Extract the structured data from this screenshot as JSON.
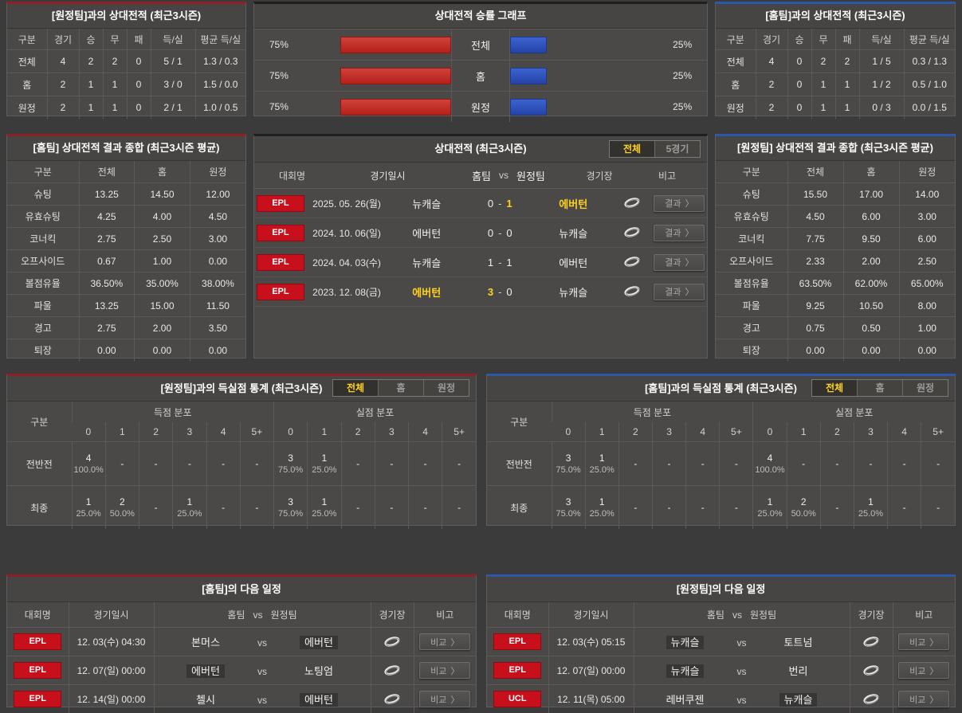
{
  "colors": {
    "accent_red": "#8e2025",
    "accent_blue": "#2d57aa",
    "bar_red": "#c22a24",
    "bar_blue": "#2f52c2",
    "highlight_yellow": "#ffd21e",
    "badge_red": "#c8101c"
  },
  "top_away_h2h": {
    "title": "[원정팀]과의 상대전적 (최근3시즌)",
    "columns": [
      "구분",
      "경기",
      "승",
      "무",
      "패",
      "득/실",
      "평균 득/실"
    ],
    "rows": [
      {
        "label": "전체",
        "values": [
          "4",
          "2",
          "2",
          "0",
          "5 / 1",
          "1.3 / 0.3"
        ]
      },
      {
        "label": "홈",
        "values": [
          "2",
          "1",
          "1",
          "0",
          "3 / 0",
          "1.5 / 0.0"
        ]
      },
      {
        "label": "원정",
        "values": [
          "2",
          "1",
          "1",
          "0",
          "2 / 1",
          "1.0 / 0.5"
        ]
      }
    ]
  },
  "winrate_graph": {
    "title": "상대전적 승률 그래프",
    "rows": [
      {
        "label": "전체",
        "left_pct": "75%",
        "left_value": 75,
        "right_pct": "25%",
        "right_value": 25
      },
      {
        "label": "홈",
        "left_pct": "75%",
        "left_value": 75,
        "right_pct": "25%",
        "right_value": 25
      },
      {
        "label": "원정",
        "left_pct": "75%",
        "left_value": 75,
        "right_pct": "25%",
        "right_value": 25
      }
    ]
  },
  "top_home_h2h": {
    "title": "[홈팀]과의 상대전적 (최근3시즌)",
    "columns": [
      "구분",
      "경기",
      "승",
      "무",
      "패",
      "득/실",
      "평균 득/실"
    ],
    "rows": [
      {
        "label": "전체",
        "values": [
          "4",
          "0",
          "2",
          "2",
          "1 / 5",
          "0.3 / 1.3"
        ]
      },
      {
        "label": "홈",
        "values": [
          "2",
          "0",
          "1",
          "1",
          "1 / 2",
          "0.5 / 1.0"
        ]
      },
      {
        "label": "원정",
        "values": [
          "2",
          "0",
          "1",
          "1",
          "0 / 3",
          "0.0 / 1.5"
        ]
      }
    ]
  },
  "summary_home": {
    "title": "[홈팀] 상대전적 결과 종합 (최근3시즌 평균)",
    "columns": [
      "구분",
      "전체",
      "홈",
      "원정"
    ],
    "rows": [
      {
        "label": "슈팅",
        "values": [
          "13.25",
          "14.50",
          "12.00"
        ]
      },
      {
        "label": "유효슈팅",
        "values": [
          "4.25",
          "4.00",
          "4.50"
        ]
      },
      {
        "label": "코너킥",
        "values": [
          "2.75",
          "2.50",
          "3.00"
        ]
      },
      {
        "label": "오프사이드",
        "values": [
          "0.67",
          "1.00",
          "0.00"
        ]
      },
      {
        "label": "볼점유율",
        "values": [
          "36.50%",
          "35.00%",
          "38.00%"
        ]
      },
      {
        "label": "파울",
        "values": [
          "13.25",
          "15.00",
          "11.50"
        ]
      },
      {
        "label": "경고",
        "values": [
          "2.75",
          "2.00",
          "3.50"
        ]
      },
      {
        "label": "퇴장",
        "values": [
          "0.00",
          "0.00",
          "0.00"
        ]
      }
    ]
  },
  "h2h_matches": {
    "title": "상대전적 (최근3시즌)",
    "tabs": [
      "전체",
      "5경기"
    ],
    "columns": {
      "league": "대회명",
      "date": "경기일시",
      "home": "홈팀",
      "vs": "vs",
      "away": "원정팀",
      "stadium": "경기장",
      "note": "비고"
    },
    "result_label": "결과",
    "chevron": "〉",
    "score_sep": "-",
    "rows": [
      {
        "league": "EPL",
        "date": "2025. 05. 26(월)",
        "home": "뉴캐슬",
        "home_score": "0",
        "away_score": "1",
        "away": "에버턴"
      },
      {
        "league": "EPL",
        "date": "2024. 10. 06(일)",
        "home": "에버턴",
        "home_score": "0",
        "away_score": "0",
        "away": "뉴캐슬"
      },
      {
        "league": "EPL",
        "date": "2024. 04. 03(수)",
        "home": "뉴캐슬",
        "home_score": "1",
        "away_score": "1",
        "away": "에버턴"
      },
      {
        "league": "EPL",
        "date": "2023. 12. 08(금)",
        "home": "에버턴",
        "home_score": "3",
        "away_score": "0",
        "away": "뉴캐슬"
      }
    ]
  },
  "summary_away": {
    "title": "[원정팀] 상대전적 결과 종합 (최근3시즌 평균)",
    "columns": [
      "구분",
      "전체",
      "홈",
      "원정"
    ],
    "rows": [
      {
        "label": "슈팅",
        "values": [
          "15.50",
          "17.00",
          "14.00"
        ]
      },
      {
        "label": "유효슈팅",
        "values": [
          "4.50",
          "6.00",
          "3.00"
        ]
      },
      {
        "label": "코너킥",
        "values": [
          "7.75",
          "9.50",
          "6.00"
        ]
      },
      {
        "label": "오프사이드",
        "values": [
          "2.33",
          "2.00",
          "2.50"
        ]
      },
      {
        "label": "볼점유율",
        "values": [
          "63.50%",
          "62.00%",
          "65.00%"
        ]
      },
      {
        "label": "파울",
        "values": [
          "9.25",
          "10.50",
          "8.00"
        ]
      },
      {
        "label": "경고",
        "values": [
          "0.75",
          "0.50",
          "1.00"
        ]
      },
      {
        "label": "퇴장",
        "values": [
          "0.00",
          "0.00",
          "0.00"
        ]
      }
    ]
  },
  "goals_away": {
    "title": "[원정팀]과의 득실점 통계 (최근3시즌)",
    "tabs": [
      "전체",
      "홈",
      "원정"
    ],
    "col_label": "구분",
    "group_scored": "득점 분포",
    "group_conceded": "실점 분포",
    "score_cols": [
      "0",
      "1",
      "2",
      "3",
      "4",
      "5+"
    ],
    "rows": [
      {
        "label": "전반전",
        "scored": [
          {
            "count": "4",
            "pct": "100.0%"
          },
          {
            "count": "-",
            "pct": ""
          },
          {
            "count": "-",
            "pct": ""
          },
          {
            "count": "-",
            "pct": ""
          },
          {
            "count": "-",
            "pct": ""
          },
          {
            "count": "-",
            "pct": ""
          }
        ],
        "conceded": [
          {
            "count": "3",
            "pct": "75.0%"
          },
          {
            "count": "1",
            "pct": "25.0%"
          },
          {
            "count": "-",
            "pct": ""
          },
          {
            "count": "-",
            "pct": ""
          },
          {
            "count": "-",
            "pct": ""
          },
          {
            "count": "-",
            "pct": ""
          }
        ]
      },
      {
        "label": "최종",
        "scored": [
          {
            "count": "1",
            "pct": "25.0%"
          },
          {
            "count": "2",
            "pct": "50.0%"
          },
          {
            "count": "-",
            "pct": ""
          },
          {
            "count": "1",
            "pct": "25.0%"
          },
          {
            "count": "-",
            "pct": ""
          },
          {
            "count": "-",
            "pct": ""
          }
        ],
        "conceded": [
          {
            "count": "3",
            "pct": "75.0%"
          },
          {
            "count": "1",
            "pct": "25.0%"
          },
          {
            "count": "-",
            "pct": ""
          },
          {
            "count": "-",
            "pct": ""
          },
          {
            "count": "-",
            "pct": ""
          },
          {
            "count": "-",
            "pct": ""
          }
        ]
      }
    ]
  },
  "goals_home": {
    "title": "[홈팀]과의 득실점 통계 (최근3시즌)",
    "tabs": [
      "전체",
      "홈",
      "원정"
    ],
    "col_label": "구분",
    "group_scored": "득점 분포",
    "group_conceded": "실점 분포",
    "score_cols": [
      "0",
      "1",
      "2",
      "3",
      "4",
      "5+"
    ],
    "rows": [
      {
        "label": "전반전",
        "scored": [
          {
            "count": "3",
            "pct": "75.0%"
          },
          {
            "count": "1",
            "pct": "25.0%"
          },
          {
            "count": "-",
            "pct": ""
          },
          {
            "count": "-",
            "pct": ""
          },
          {
            "count": "-",
            "pct": ""
          },
          {
            "count": "-",
            "pct": ""
          }
        ],
        "conceded": [
          {
            "count": "4",
            "pct": "100.0%"
          },
          {
            "count": "-",
            "pct": ""
          },
          {
            "count": "-",
            "pct": ""
          },
          {
            "count": "-",
            "pct": ""
          },
          {
            "count": "-",
            "pct": ""
          },
          {
            "count": "-",
            "pct": ""
          }
        ]
      },
      {
        "label": "최종",
        "scored": [
          {
            "count": "3",
            "pct": "75.0%"
          },
          {
            "count": "1",
            "pct": "25.0%"
          },
          {
            "count": "-",
            "pct": ""
          },
          {
            "count": "-",
            "pct": ""
          },
          {
            "count": "-",
            "pct": ""
          },
          {
            "count": "-",
            "pct": ""
          }
        ],
        "conceded": [
          {
            "count": "1",
            "pct": "25.0%"
          },
          {
            "count": "2",
            "pct": "50.0%"
          },
          {
            "count": "-",
            "pct": ""
          },
          {
            "count": "1",
            "pct": "25.0%"
          },
          {
            "count": "-",
            "pct": ""
          },
          {
            "count": "-",
            "pct": ""
          }
        ]
      }
    ]
  },
  "schedule_home": {
    "title": "[홈팀]의 다음 일정",
    "columns": {
      "league": "대회명",
      "date": "경기일시",
      "home": "홈팀",
      "vs": "vs",
      "away": "원정팀",
      "stadium": "경기장",
      "note": "비고"
    },
    "compare_label": "비교",
    "chevron": "〉",
    "vs_label": "vs",
    "rows": [
      {
        "league": "EPL",
        "date": "12. 03(수) 04:30",
        "home": "본머스",
        "away": "에버턴"
      },
      {
        "league": "EPL",
        "date": "12. 07(일) 00:00",
        "home": "에버턴",
        "away": "노팅엄"
      },
      {
        "league": "EPL",
        "date": "12. 14(일) 00:00",
        "home": "첼시",
        "away": "에버턴"
      }
    ]
  },
  "schedule_away": {
    "title": "[원정팀]의 다음 일정",
    "columns": {
      "league": "대회명",
      "date": "경기일시",
      "home": "홈팀",
      "vs": "vs",
      "away": "원정팀",
      "stadium": "경기장",
      "note": "비고"
    },
    "compare_label": "비교",
    "chevron": "〉",
    "vs_label": "vs",
    "rows": [
      {
        "league": "EPL",
        "date": "12. 03(수) 05:15",
        "home": "뉴캐슬",
        "away": "토트넘"
      },
      {
        "league": "EPL",
        "date": "12. 07(일) 00:00",
        "home": "뉴캐슬",
        "away": "번리"
      },
      {
        "league": "UCL",
        "date": "12. 11(목) 05:00",
        "home": "레버쿠젠",
        "away": "뉴캐슬"
      }
    ]
  }
}
